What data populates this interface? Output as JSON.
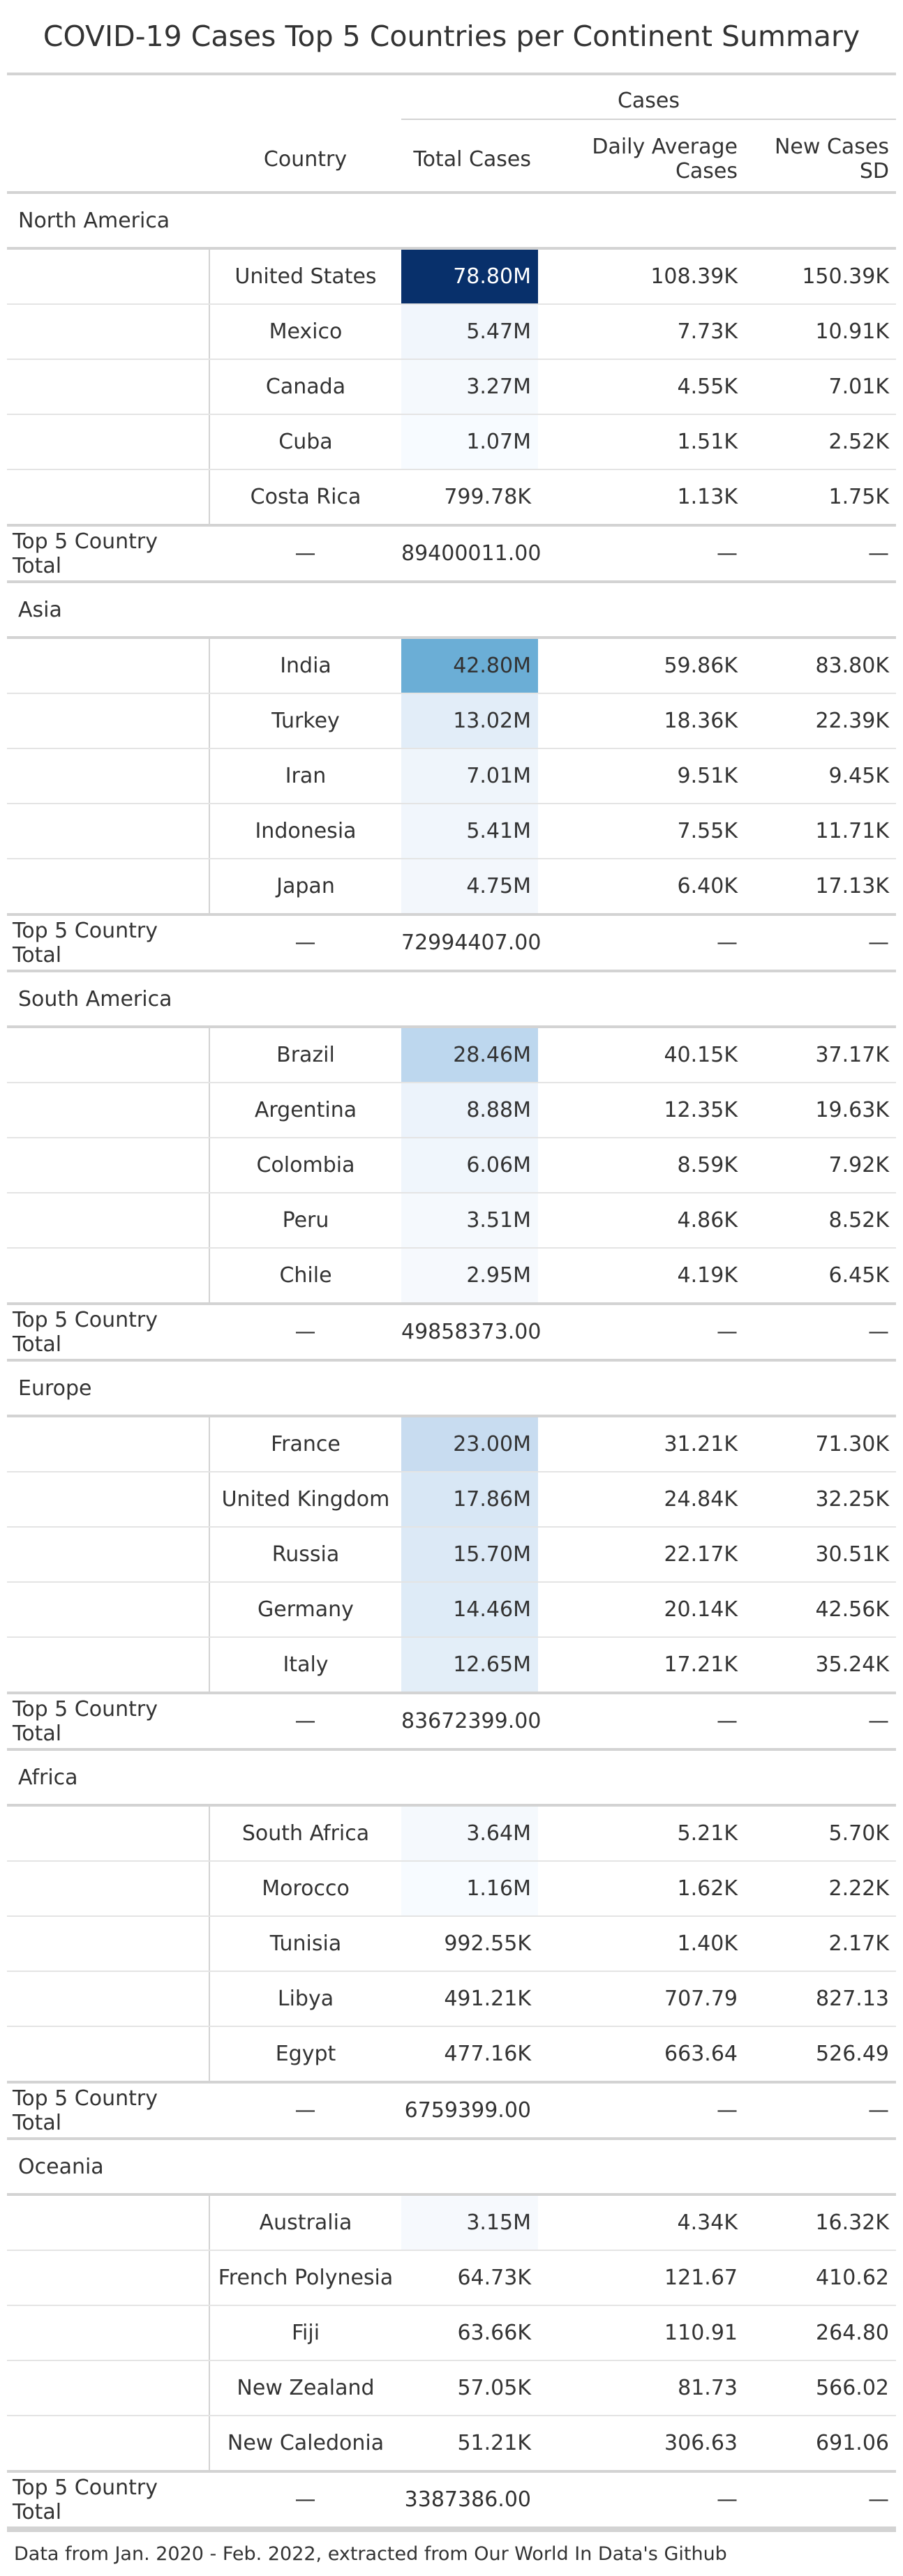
{
  "title": "COVID-19 Cases Top 5 Countries per Continent Summary",
  "spanner": "Cases",
  "columns": {
    "country": "Country",
    "total": "Total Cases",
    "avg": "Daily Average Cases",
    "sd": "New Cases SD"
  },
  "summary_label": "Top 5 Country Total",
  "dash": "—",
  "heat_colors": {
    "78.80M": "#08306b",
    "42.80M": "#6baed6",
    "28.46M": "#bdd7ee",
    "23.00M": "#c8dcf0",
    "17.86M": "#d8e7f5",
    "15.70M": "#dce9f6",
    "14.46M": "#deebf7",
    "13.02M": "#e2edf8",
    "12.65M": "#e3eef8",
    "8.88M": "#ecf3fb",
    "7.01M": "#eff5fb",
    "6.06M": "#f0f6fc",
    "5.47M": "#f1f6fc",
    "5.41M": "#f1f6fc",
    "4.75M": "#f3f7fc",
    "3.64M": "#f5f9fd",
    "3.51M": "#f5f9fd",
    "3.27M": "#f5f9fd",
    "3.15M": "#f6f9fd",
    "2.95M": "#f6f9fd",
    "1.16M": "#f7fbff",
    "1.07M": "#f7fbff"
  },
  "groups": [
    {
      "name": "North America",
      "total": "89400011.00",
      "rows": [
        {
          "country": "United States",
          "total": "78.80M",
          "avg": "108.39K",
          "sd": "150.39K"
        },
        {
          "country": "Mexico",
          "total": "5.47M",
          "avg": "7.73K",
          "sd": "10.91K"
        },
        {
          "country": "Canada",
          "total": "3.27M",
          "avg": "4.55K",
          "sd": "7.01K"
        },
        {
          "country": "Cuba",
          "total": "1.07M",
          "avg": "1.51K",
          "sd": "2.52K"
        },
        {
          "country": "Costa Rica",
          "total": "799.78K",
          "avg": "1.13K",
          "sd": "1.75K"
        }
      ]
    },
    {
      "name": "Asia",
      "total": "72994407.00",
      "rows": [
        {
          "country": "India",
          "total": "42.80M",
          "avg": "59.86K",
          "sd": "83.80K"
        },
        {
          "country": "Turkey",
          "total": "13.02M",
          "avg": "18.36K",
          "sd": "22.39K"
        },
        {
          "country": "Iran",
          "total": "7.01M",
          "avg": "9.51K",
          "sd": "9.45K"
        },
        {
          "country": "Indonesia",
          "total": "5.41M",
          "avg": "7.55K",
          "sd": "11.71K"
        },
        {
          "country": "Japan",
          "total": "4.75M",
          "avg": "6.40K",
          "sd": "17.13K"
        }
      ]
    },
    {
      "name": "South America",
      "total": "49858373.00",
      "rows": [
        {
          "country": "Brazil",
          "total": "28.46M",
          "avg": "40.15K",
          "sd": "37.17K"
        },
        {
          "country": "Argentina",
          "total": "8.88M",
          "avg": "12.35K",
          "sd": "19.63K"
        },
        {
          "country": "Colombia",
          "total": "6.06M",
          "avg": "8.59K",
          "sd": "7.92K"
        },
        {
          "country": "Peru",
          "total": "3.51M",
          "avg": "4.86K",
          "sd": "8.52K"
        },
        {
          "country": "Chile",
          "total": "2.95M",
          "avg": "4.19K",
          "sd": "6.45K"
        }
      ]
    },
    {
      "name": "Europe",
      "total": "83672399.00",
      "rows": [
        {
          "country": "France",
          "total": "23.00M",
          "avg": "31.21K",
          "sd": "71.30K"
        },
        {
          "country": "United Kingdom",
          "total": "17.86M",
          "avg": "24.84K",
          "sd": "32.25K"
        },
        {
          "country": "Russia",
          "total": "15.70M",
          "avg": "22.17K",
          "sd": "30.51K"
        },
        {
          "country": "Germany",
          "total": "14.46M",
          "avg": "20.14K",
          "sd": "42.56K"
        },
        {
          "country": "Italy",
          "total": "12.65M",
          "avg": "17.21K",
          "sd": "35.24K"
        }
      ]
    },
    {
      "name": "Africa",
      "total": "6759399.00",
      "rows": [
        {
          "country": "South Africa",
          "total": "3.64M",
          "avg": "5.21K",
          "sd": "5.70K"
        },
        {
          "country": "Morocco",
          "total": "1.16M",
          "avg": "1.62K",
          "sd": "2.22K"
        },
        {
          "country": "Tunisia",
          "total": "992.55K",
          "avg": "1.40K",
          "sd": "2.17K"
        },
        {
          "country": "Libya",
          "total": "491.21K",
          "avg": "707.79",
          "sd": "827.13"
        },
        {
          "country": "Egypt",
          "total": "477.16K",
          "avg": "663.64",
          "sd": "526.49"
        }
      ]
    },
    {
      "name": "Oceania",
      "total": "3387386.00",
      "rows": [
        {
          "country": "Australia",
          "total": "3.15M",
          "avg": "4.34K",
          "sd": "16.32K"
        },
        {
          "country": "French Polynesia",
          "total": "64.73K",
          "avg": "121.67",
          "sd": "410.62"
        },
        {
          "country": "Fiji",
          "total": "63.66K",
          "avg": "110.91",
          "sd": "264.80"
        },
        {
          "country": "New Zealand",
          "total": "57.05K",
          "avg": "81.73",
          "sd": "566.02"
        },
        {
          "country": "New Caledonia",
          "total": "51.21K",
          "avg": "306.63",
          "sd": "691.06"
        }
      ]
    }
  ],
  "footnote": "Data from Jan. 2020 - Feb. 2022, extracted from Our World In Data's Github"
}
